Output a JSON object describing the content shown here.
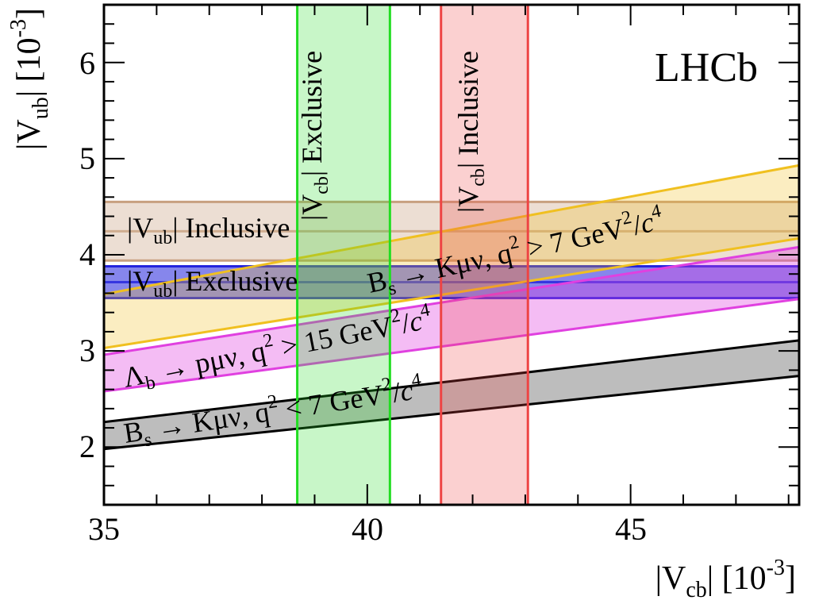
{
  "chart_data": {
    "type": "area",
    "experiment_label": "LHCb",
    "xlabel": "|V_cb| [10^-3]",
    "ylabel": "|V_ub| [10^-3]",
    "xlim": [
      35,
      48.2
    ],
    "ylim": [
      1.4,
      6.6
    ],
    "x_ticks": [
      "35",
      "40",
      "45"
    ],
    "y_ticks": [
      "2",
      "3",
      "4",
      "5",
      "6"
    ],
    "grid": false,
    "vertical_bands": [
      {
        "name": "|Vcb| Exclusive",
        "x_range": [
          38.67,
          40.43
        ],
        "color": "#22dd22"
      },
      {
        "name": "|Vcb| Inclusive",
        "x_range": [
          41.4,
          43.05
        ],
        "color": "#ee4444"
      }
    ],
    "horizontal_bands": [
      {
        "name": "|Vub| Inclusive",
        "y_range": [
          3.94,
          4.55
        ],
        "center": 4.245,
        "color": "#c8a080"
      },
      {
        "name": "|Vub| Exclusive",
        "y_range": [
          3.55,
          3.88
        ],
        "center": 3.715,
        "color": "#2222dd"
      }
    ],
    "sloped_bands": [
      {
        "name": "Bs → Kμν, q² > 7 GeV²/c⁴",
        "lower": [
          [
            35,
            3.03
          ],
          [
            48.2,
            4.17
          ]
        ],
        "upper": [
          [
            35,
            3.59
          ],
          [
            48.2,
            4.93
          ]
        ],
        "color": "#f0c020"
      },
      {
        "name": "Λb → pμν, q² > 15 GeV²/c⁴",
        "lower": [
          [
            35,
            2.58
          ],
          [
            48.2,
            3.54
          ]
        ],
        "upper": [
          [
            35,
            2.96
          ],
          [
            48.2,
            4.08
          ]
        ],
        "color": "#e040e0"
      },
      {
        "name": "Bs → Kμν, q² < 7 GeV²/c⁴",
        "lower": [
          [
            35,
            1.98
          ],
          [
            48.2,
            2.74
          ]
        ],
        "upper": [
          [
            35,
            2.26
          ],
          [
            48.2,
            3.11
          ]
        ],
        "color": "#333333"
      }
    ]
  }
}
